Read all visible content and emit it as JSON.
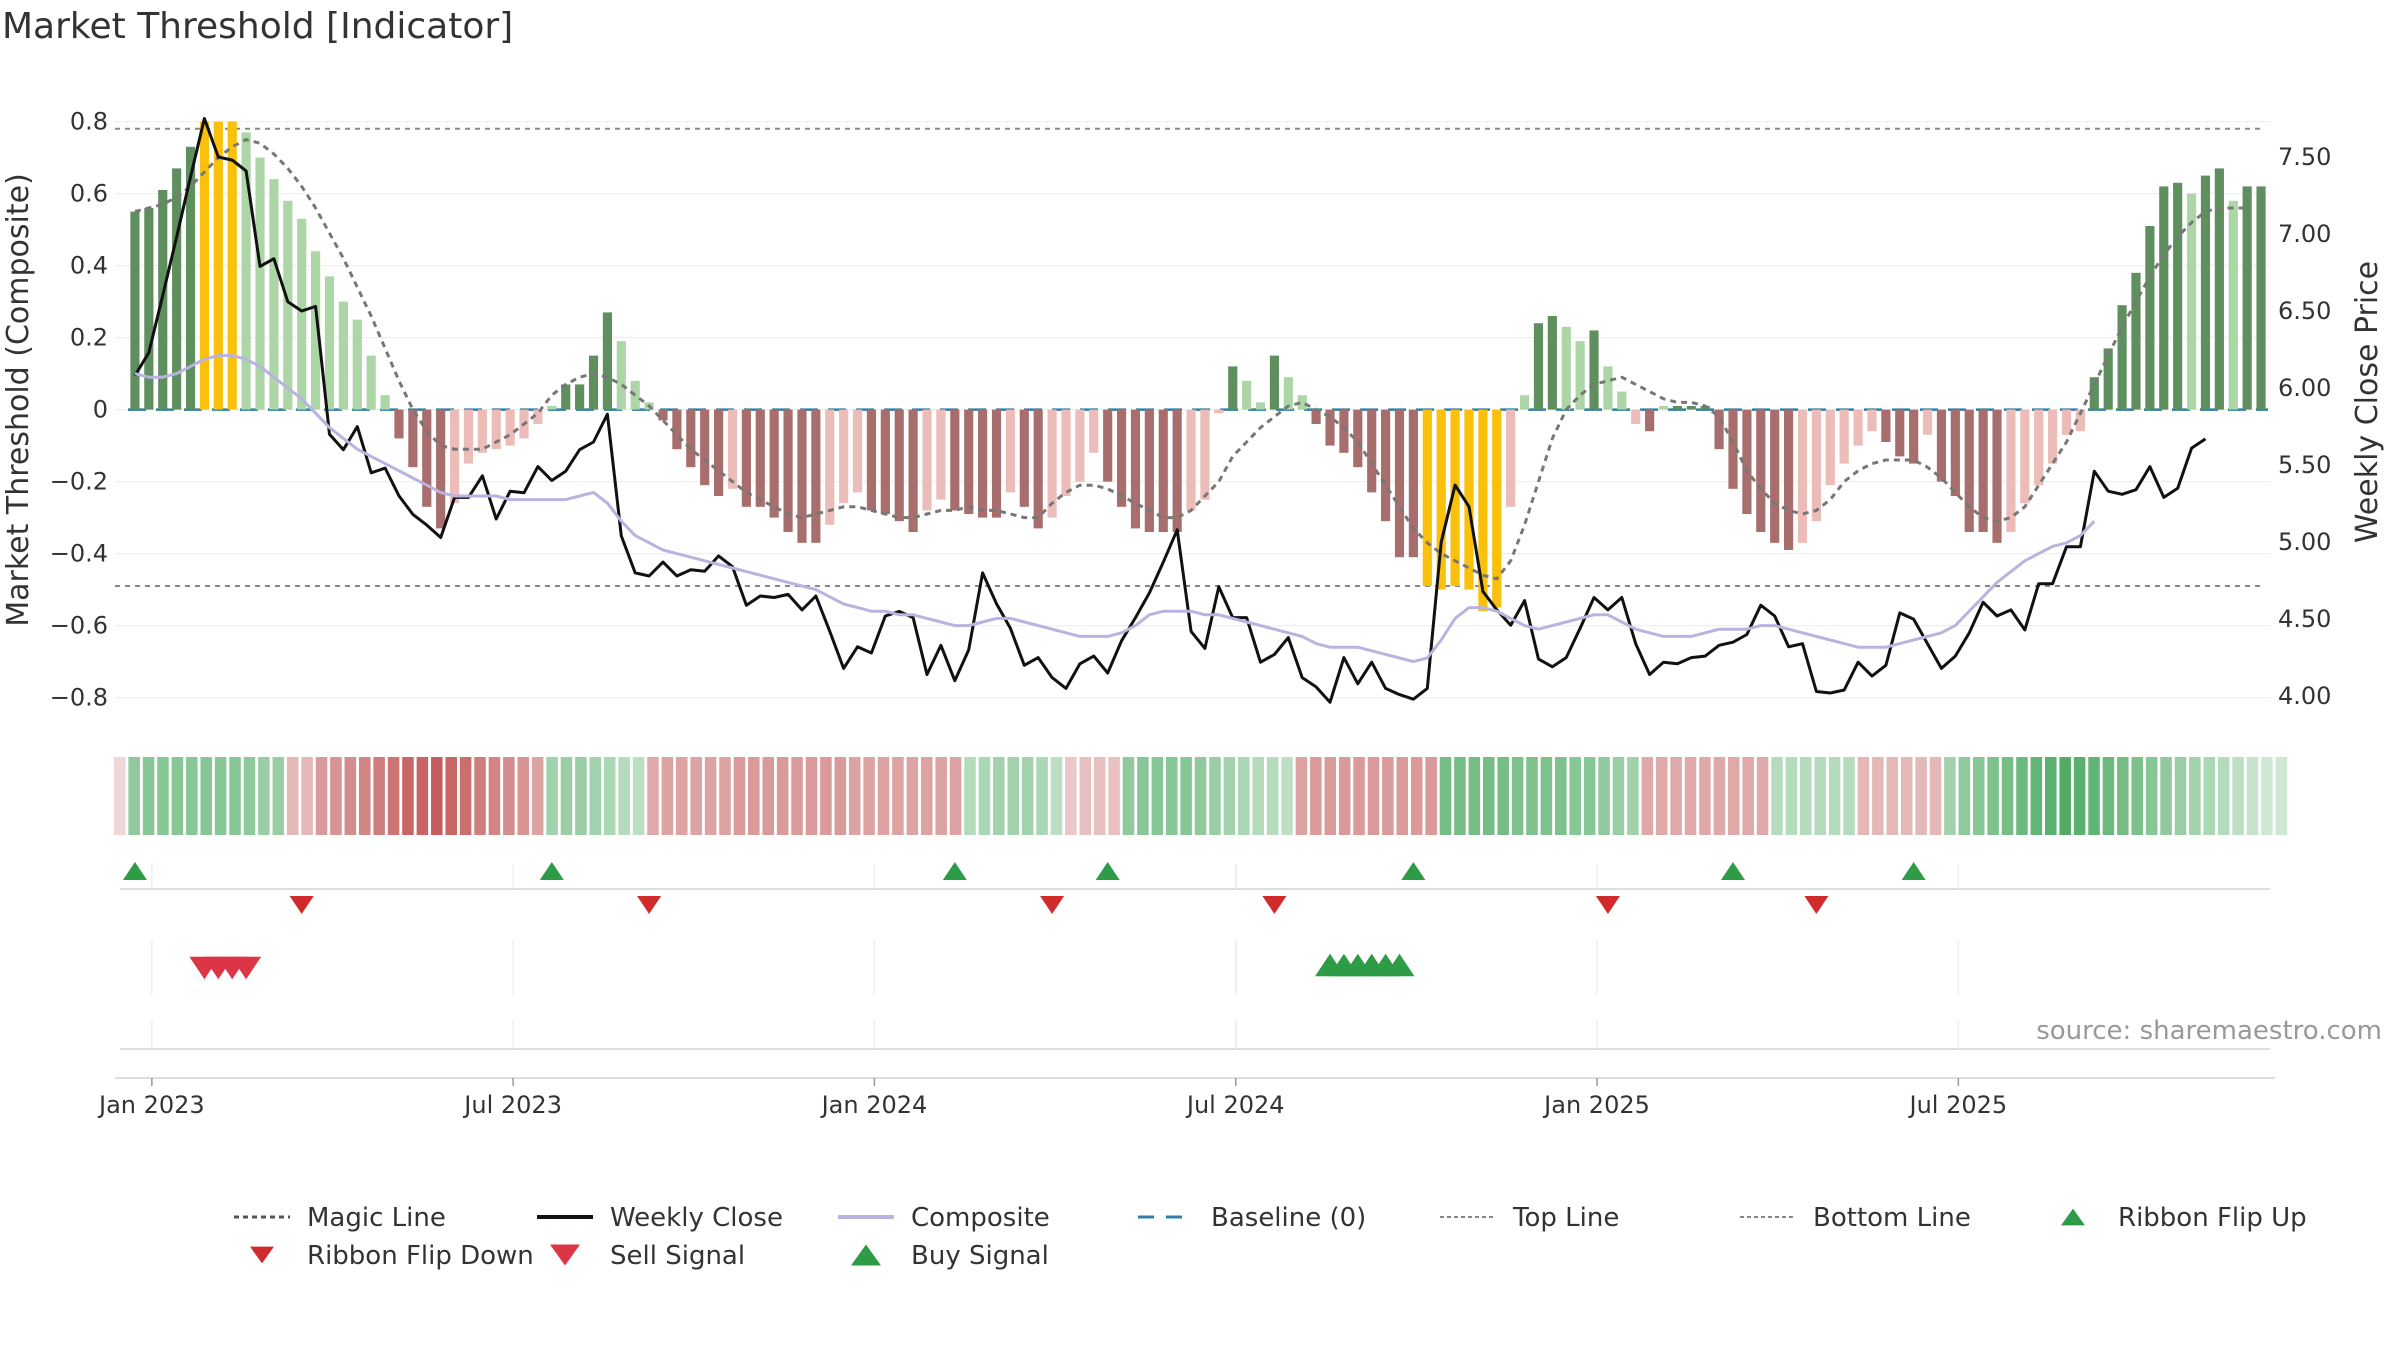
{
  "chart_data": {
    "type": "bar",
    "title": "Market Threshold [Indicator]",
    "source": "source: sharemaestro.com",
    "y_left_label": "Market Threshold (Composite)",
    "y_right_label": "Weekly Close Price",
    "ylim_left": [
      -0.89,
      0.86
    ],
    "ylim_right": [
      3.78,
      7.87
    ],
    "yticks_left": [
      -0.8,
      -0.6,
      -0.4,
      -0.2,
      0,
      0.2,
      0.4,
      0.6,
      0.8
    ],
    "yticks_left_labels": [
      "−0.8",
      "−0.6",
      "−0.4",
      "−0.2",
      "0",
      "0.2",
      "0.4",
      "0.6",
      "0.8"
    ],
    "yticks_right": [
      4.0,
      4.5,
      5.0,
      5.5,
      6.0,
      6.5,
      7.0,
      7.5
    ],
    "yticks_right_labels": [
      "4.00",
      "4.50",
      "5.00",
      "5.50",
      "6.00",
      "6.50",
      "7.00",
      "7.50"
    ],
    "x_tick_labels": [
      "Jan 2023",
      "Jul 2023",
      "Jan 2024",
      "Jul 2024",
      "Jan 2025",
      "Jul 2025"
    ],
    "x_tick_weeks": [
      1,
      27,
      53,
      79,
      105,
      131
    ],
    "top_line": 0.78,
    "bottom_line": -0.49,
    "composite_bars": [
      0.55,
      0.56,
      0.61,
      0.67,
      0.73,
      0.8,
      0.8,
      0.8,
      0.77,
      0.7,
      0.64,
      0.58,
      0.53,
      0.44,
      0.37,
      0.3,
      0.25,
      0.15,
      0.04,
      -0.08,
      -0.16,
      -0.27,
      -0.33,
      -0.26,
      -0.15,
      -0.12,
      -0.11,
      -0.1,
      -0.08,
      -0.04,
      0.01,
      0.07,
      0.07,
      0.15,
      0.27,
      0.19,
      0.08,
      0.02,
      -0.03,
      -0.11,
      -0.16,
      -0.21,
      -0.24,
      -0.22,
      -0.27,
      -0.27,
      -0.3,
      -0.34,
      -0.37,
      -0.37,
      -0.32,
      -0.26,
      -0.23,
      -0.28,
      -0.29,
      -0.31,
      -0.34,
      -0.28,
      -0.25,
      -0.28,
      -0.29,
      -0.3,
      -0.3,
      -0.23,
      -0.27,
      -0.33,
      -0.3,
      -0.24,
      -0.2,
      -0.12,
      -0.2,
      -0.27,
      -0.33,
      -0.34,
      -0.34,
      -0.34,
      -0.28,
      -0.25,
      -0.01,
      0.12,
      0.08,
      0.02,
      0.15,
      0.09,
      0.04,
      -0.04,
      -0.1,
      -0.12,
      -0.16,
      -0.23,
      -0.31,
      -0.41,
      -0.41,
      -0.49,
      -0.5,
      -0.49,
      -0.5,
      -0.56,
      -0.55,
      -0.27,
      0.04,
      0.24,
      0.26,
      0.23,
      0.19,
      0.22,
      0.12,
      0.05,
      -0.04,
      -0.06,
      0.01,
      0.01,
      0.01,
      0.01,
      -0.11,
      -0.22,
      -0.29,
      -0.34,
      -0.37,
      -0.39,
      -0.37,
      -0.31,
      -0.21,
      -0.15,
      -0.1,
      -0.06,
      -0.09,
      -0.13,
      -0.15,
      -0.07,
      -0.2,
      -0.24,
      -0.34,
      -0.34,
      -0.37,
      -0.34,
      -0.26,
      -0.21,
      -0.15,
      -0.07,
      -0.06,
      0.09,
      0.17,
      0.29,
      0.38,
      0.51,
      0.62,
      0.63,
      0.6,
      0.65,
      0.67,
      0.58,
      0.62,
      0.62
    ],
    "series": [
      {
        "name": "Magic Line",
        "style": "dotted",
        "color": "#777777",
        "values": [
          0.55,
          0.56,
          0.57,
          0.59,
          0.62,
          0.66,
          0.7,
          0.73,
          0.75,
          0.74,
          0.71,
          0.67,
          0.62,
          0.56,
          0.49,
          0.42,
          0.34,
          0.26,
          0.17,
          0.08,
          0.0,
          -0.06,
          -0.1,
          -0.11,
          -0.11,
          -0.11,
          -0.09,
          -0.07,
          -0.04,
          -0.01,
          0.04,
          0.07,
          0.09,
          0.1,
          0.09,
          0.07,
          0.04,
          0.01,
          -0.03,
          -0.07,
          -0.11,
          -0.14,
          -0.17,
          -0.2,
          -0.23,
          -0.25,
          -0.27,
          -0.29,
          -0.3,
          -0.29,
          -0.28,
          -0.27,
          -0.27,
          -0.28,
          -0.29,
          -0.3,
          -0.3,
          -0.29,
          -0.28,
          -0.28,
          -0.27,
          -0.28,
          -0.28,
          -0.29,
          -0.3,
          -0.3,
          -0.26,
          -0.23,
          -0.21,
          -0.21,
          -0.22,
          -0.24,
          -0.26,
          -0.28,
          -0.3,
          -0.3,
          -0.28,
          -0.24,
          -0.2,
          -0.13,
          -0.09,
          -0.05,
          -0.02,
          0.01,
          0.02,
          0.0,
          -0.02,
          -0.05,
          -0.09,
          -0.15,
          -0.21,
          -0.27,
          -0.33,
          -0.37,
          -0.4,
          -0.42,
          -0.44,
          -0.46,
          -0.47,
          -0.42,
          -0.32,
          -0.2,
          -0.08,
          0.0,
          0.04,
          0.07,
          0.08,
          0.09,
          0.07,
          0.05,
          0.03,
          0.02,
          0.02,
          0.01,
          -0.02,
          -0.09,
          -0.17,
          -0.22,
          -0.26,
          -0.28,
          -0.29,
          -0.28,
          -0.25,
          -0.2,
          -0.17,
          -0.15,
          -0.14,
          -0.14,
          -0.14,
          -0.16,
          -0.19,
          -0.23,
          -0.27,
          -0.3,
          -0.31,
          -0.3,
          -0.27,
          -0.21,
          -0.15,
          -0.09,
          -0.01,
          0.07,
          0.15,
          0.23,
          0.3,
          0.37,
          0.43,
          0.48,
          0.52,
          0.55,
          0.56,
          0.56,
          0.56
        ]
      },
      {
        "name": "Weekly Close",
        "style": "solid",
        "color": "#111111",
        "axis": "right",
        "values": [
          6.08,
          6.23,
          6.6,
          6.98,
          7.37,
          7.75,
          7.5,
          7.48,
          7.41,
          6.79,
          6.84,
          6.56,
          6.5,
          6.53,
          5.7,
          5.6,
          5.75,
          5.45,
          5.48,
          5.3,
          5.18,
          5.11,
          5.03,
          5.29,
          5.29,
          5.43,
          5.15,
          5.33,
          5.32,
          5.49,
          5.4,
          5.46,
          5.6,
          5.65,
          5.83,
          5.04,
          4.8,
          4.78,
          4.87,
          4.78,
          4.82,
          4.81,
          4.91,
          4.84,
          4.59,
          4.65,
          4.64,
          4.66,
          4.56,
          4.65,
          4.42,
          4.18,
          4.32,
          4.28,
          4.52,
          4.55,
          4.51,
          4.14,
          4.33,
          4.1,
          4.3,
          4.8,
          4.6,
          4.44,
          4.2,
          4.25,
          4.12,
          4.05,
          4.21,
          4.26,
          4.15,
          4.36,
          4.51,
          4.67,
          4.87,
          5.08,
          4.42,
          4.31,
          4.71,
          4.51,
          4.51,
          4.22,
          4.27,
          4.38,
          4.12,
          4.06,
          3.96,
          4.25,
          4.08,
          4.22,
          4.05,
          4.01,
          3.98,
          4.05,
          5.0,
          5.37,
          5.23,
          4.68,
          4.56,
          4.46,
          4.62,
          4.24,
          4.19,
          4.25,
          4.44,
          4.64,
          4.56,
          4.64,
          4.34,
          4.14,
          4.22,
          4.21,
          4.25,
          4.26,
          4.33,
          4.35,
          4.4,
          4.59,
          4.52,
          4.32,
          4.34,
          4.03,
          4.02,
          4.04,
          4.22,
          4.13,
          4.2,
          4.54,
          4.5,
          4.34,
          4.18,
          4.26,
          4.41,
          4.61,
          4.52,
          4.56,
          4.43,
          4.73,
          4.73,
          4.97,
          4.97,
          5.46,
          5.33,
          5.31,
          5.34,
          5.49,
          5.29,
          5.35,
          5.61,
          5.67
        ]
      },
      {
        "name": "Composite",
        "style": "solid",
        "color": "#b9b3e0",
        "values": [
          0.1,
          0.09,
          0.09,
          0.1,
          0.12,
          0.14,
          0.15,
          0.15,
          0.14,
          0.12,
          0.09,
          0.06,
          0.03,
          -0.01,
          -0.05,
          -0.08,
          -0.11,
          -0.13,
          -0.15,
          -0.17,
          -0.19,
          -0.21,
          -0.23,
          -0.24,
          -0.24,
          -0.24,
          -0.24,
          -0.25,
          -0.25,
          -0.25,
          -0.25,
          -0.25,
          -0.24,
          -0.23,
          -0.26,
          -0.31,
          -0.35,
          -0.37,
          -0.39,
          -0.4,
          -0.41,
          -0.42,
          -0.43,
          -0.44,
          -0.45,
          -0.46,
          -0.47,
          -0.48,
          -0.49,
          -0.5,
          -0.52,
          -0.54,
          -0.55,
          -0.56,
          -0.56,
          -0.57,
          -0.57,
          -0.58,
          -0.59,
          -0.6,
          -0.6,
          -0.59,
          -0.58,
          -0.58,
          -0.59,
          -0.6,
          -0.61,
          -0.62,
          -0.63,
          -0.63,
          -0.63,
          -0.62,
          -0.6,
          -0.57,
          -0.56,
          -0.56,
          -0.56,
          -0.57,
          -0.57,
          -0.58,
          -0.59,
          -0.6,
          -0.61,
          -0.62,
          -0.63,
          -0.65,
          -0.66,
          -0.66,
          -0.66,
          -0.67,
          -0.68,
          -0.69,
          -0.7,
          -0.69,
          -0.64,
          -0.58,
          -0.55,
          -0.55,
          -0.56,
          -0.58,
          -0.6,
          -0.61,
          -0.6,
          -0.59,
          -0.58,
          -0.57,
          -0.57,
          -0.59,
          -0.61,
          -0.62,
          -0.63,
          -0.63,
          -0.63,
          -0.62,
          -0.61,
          -0.61,
          -0.61,
          -0.6,
          -0.6,
          -0.61,
          -0.62,
          -0.63,
          -0.64,
          -0.65,
          -0.66,
          -0.66,
          -0.66,
          -0.65,
          -0.64,
          -0.63,
          -0.62,
          -0.6,
          -0.56,
          -0.52,
          -0.48,
          -0.45,
          -0.42,
          -0.4,
          -0.38,
          -0.37,
          -0.35,
          -0.31
        ]
      }
    ],
    "legend": [
      {
        "label": "Magic Line",
        "marker": "dotted",
        "color": "#555555"
      },
      {
        "label": "Weekly Close",
        "marker": "solid",
        "color": "#111111"
      },
      {
        "label": "Composite",
        "marker": "solid",
        "color": "#b9b3e0"
      },
      {
        "label": "Baseline (0)",
        "marker": "dashed",
        "color": "#2f7fa8"
      },
      {
        "label": "Top Line",
        "marker": "dotted-thin",
        "color": "#888888"
      },
      {
        "label": "Bottom Line",
        "marker": "dotted-thin",
        "color": "#888888"
      },
      {
        "label": "Ribbon Flip Up",
        "marker": "triangle-up",
        "color": "#2e9b46"
      },
      {
        "label": "Ribbon Flip Down",
        "marker": "triangle-down",
        "color": "#d12a2a"
      },
      {
        "label": "Sell Signal",
        "marker": "triangle-down",
        "color": "#dc3545"
      },
      {
        "label": "Buy Signal",
        "marker": "triangle-up",
        "color": "#2e9b46"
      }
    ],
    "legend_placement": "bottom",
    "ribbon_flip_up_weeks": [
      0,
      30,
      59,
      70,
      92,
      115,
      128
    ],
    "ribbon_flip_down_weeks": [
      12,
      37,
      66,
      82,
      106,
      121
    ],
    "sell_signal_weeks": [
      5,
      6,
      7,
      8
    ],
    "buy_signal_weeks": [
      86,
      87,
      88,
      89,
      90,
      91
    ],
    "ribbon_values": [
      -0.1,
      0.45,
      0.5,
      0.5,
      0.5,
      0.5,
      0.5,
      0.5,
      0.5,
      0.45,
      0.4,
      0.4,
      -0.3,
      -0.3,
      -0.5,
      -0.55,
      -0.6,
      -0.65,
      -0.7,
      -0.75,
      -0.85,
      -0.85,
      -0.9,
      -0.85,
      -0.8,
      -0.7,
      -0.65,
      -0.6,
      -0.55,
      -0.45,
      0.35,
      0.4,
      0.4,
      0.35,
      0.3,
      0.25,
      0.2,
      -0.4,
      -0.45,
      -0.45,
      -0.45,
      -0.45,
      -0.45,
      -0.5,
      -0.5,
      -0.5,
      -0.5,
      -0.5,
      -0.5,
      -0.5,
      -0.5,
      -0.45,
      -0.45,
      -0.45,
      -0.45,
      -0.45,
      -0.45,
      -0.45,
      -0.45,
      0.25,
      0.3,
      0.35,
      0.35,
      0.35,
      0.3,
      0.2,
      -0.2,
      -0.25,
      -0.25,
      -0.25,
      0.45,
      0.5,
      0.5,
      0.5,
      0.5,
      0.45,
      0.4,
      0.35,
      0.3,
      0.25,
      0.25,
      0.2,
      -0.45,
      -0.5,
      -0.5,
      -0.5,
      -0.5,
      -0.5,
      -0.5,
      -0.5,
      -0.5,
      -0.5,
      0.6,
      0.6,
      0.6,
      0.6,
      0.6,
      0.55,
      0.55,
      0.55,
      0.55,
      0.5,
      0.5,
      0.45,
      0.4,
      0.35,
      -0.4,
      -0.4,
      -0.4,
      -0.4,
      -0.4,
      -0.4,
      -0.4,
      -0.4,
      -0.4,
      0.25,
      0.25,
      0.25,
      0.25,
      0.25,
      0.25,
      -0.3,
      -0.3,
      -0.3,
      -0.3,
      -0.3,
      -0.3,
      0.35,
      0.45,
      0.5,
      0.55,
      0.6,
      0.65,
      0.7,
      0.75,
      0.8,
      0.75,
      0.7,
      0.65,
      0.6,
      0.55,
      0.5,
      0.45,
      0.4,
      0.35,
      0.3,
      0.25,
      0.2,
      0.15,
      0.1,
      0.1
    ]
  }
}
